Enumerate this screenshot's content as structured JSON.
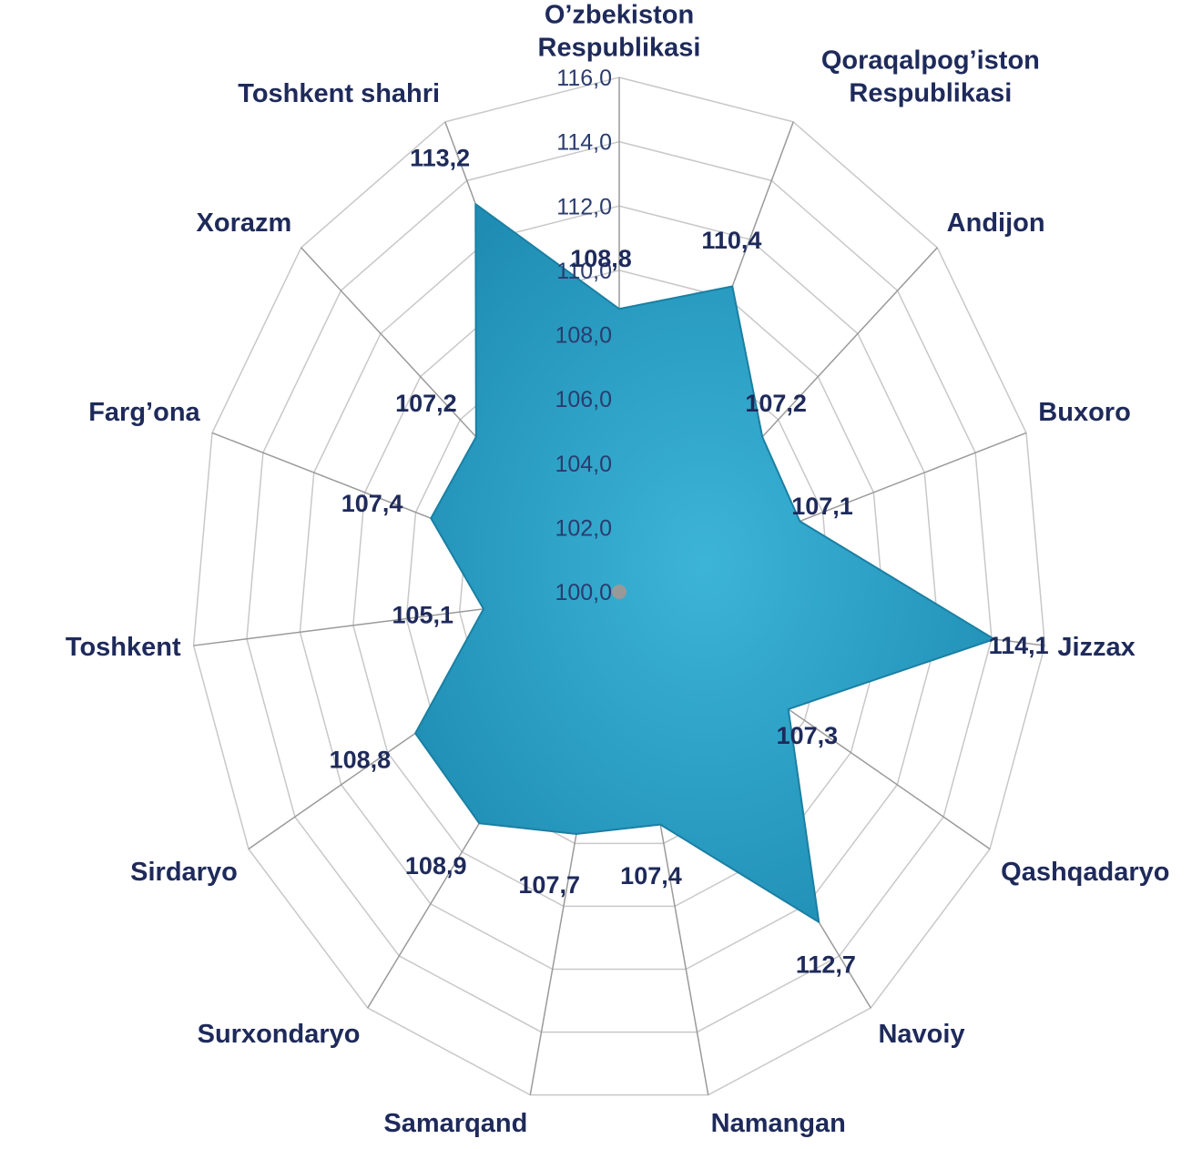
{
  "chart_data": {
    "type": "radar",
    "categories": [
      "O’zbekiston Respublikasi",
      "Qoraqalpog’iston Respublikasi",
      "Andijon",
      "Buxoro",
      "Jizzax",
      "Qashqadaryo",
      "Navoiy",
      "Namangan",
      "Samarqand",
      "Surxondaryo",
      "Sirdaryo",
      "Toshkent",
      "Farg’ona",
      "Xorazm",
      "Toshkent shahri"
    ],
    "values": [
      108.8,
      110.4,
      107.2,
      107.1,
      114.1,
      107.3,
      112.7,
      107.4,
      107.7,
      108.9,
      108.8,
      105.1,
      107.4,
      107.2,
      113.2
    ],
    "value_labels": [
      "108,8",
      "110,4",
      "107,2",
      "107,1",
      "114,1",
      "107,3",
      "112,7",
      "107,4",
      "107,7",
      "108,9",
      "108,8",
      "105,1",
      "107,4",
      "107,2",
      "113,2"
    ],
    "color": "#3cb4d8",
    "ylim": [
      100,
      116
    ],
    "yticks": [
      {
        "value": 100,
        "label": "100,0"
      },
      {
        "value": 102,
        "label": "102,0"
      },
      {
        "value": 104,
        "label": "104,0"
      },
      {
        "value": 106,
        "label": "106,0"
      },
      {
        "value": 108,
        "label": "108,0"
      },
      {
        "value": 110,
        "label": "110,0"
      },
      {
        "value": 112,
        "label": "112,0"
      },
      {
        "value": 114,
        "label": "114,0"
      },
      {
        "value": 116,
        "label": "116,0"
      }
    ],
    "grid": true
  }
}
